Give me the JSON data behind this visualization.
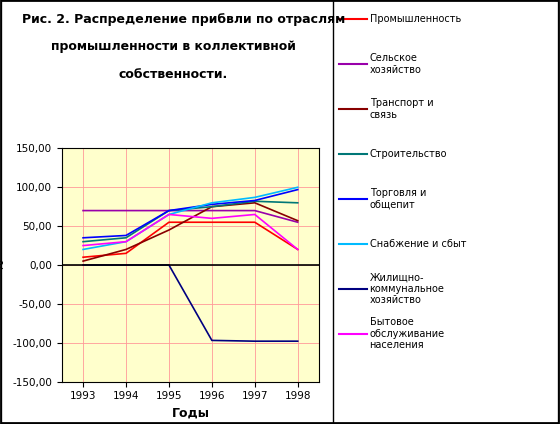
{
  "title_line1": "Рис. 2. Распределение прибвли по отраслям",
  "title_line2": "промышленности в коллективной",
  "title_line3": "собственности.",
  "xlabel": "Годы",
  "ylabel": "%",
  "years": [
    1993,
    1994,
    1995,
    1996,
    1997,
    1998
  ],
  "ylim": [
    -150,
    150
  ],
  "yticks": [
    -150,
    -100,
    -50,
    0,
    50,
    100,
    150
  ],
  "background_color": "#FFFFCC",
  "outer_background": "#FFFFFF",
  "grid_color": "#FF9999",
  "series": [
    {
      "label": "Промышленность",
      "color": "#FF0000",
      "values": [
        10,
        15,
        55,
        55,
        55,
        20
      ]
    },
    {
      "label": "Сельское\nхозяйство",
      "color": "#9900AA",
      "values": [
        70,
        70,
        70,
        70,
        70,
        55
      ]
    },
    {
      "label": "Транспорт и\nсвязь",
      "color": "#880000",
      "values": [
        5,
        20,
        45,
        75,
        80,
        57
      ]
    },
    {
      "label": "Строительство",
      "color": "#007777",
      "values": [
        30,
        35,
        70,
        75,
        82,
        80
      ]
    },
    {
      "label": "Торговля и\nобщепит",
      "color": "#0000FF",
      "values": [
        35,
        38,
        70,
        78,
        83,
        97
      ]
    },
    {
      "label": "Снабжение и сбыт",
      "color": "#00BBFF",
      "values": [
        20,
        30,
        65,
        80,
        87,
        100
      ]
    },
    {
      "label": "Жилищно-\nкоммунальное\nхозяйство",
      "color": "#000080",
      "values": [
        0,
        0,
        0,
        -97,
        -98,
        -98
      ]
    },
    {
      "label": "Бытовое\nобслуживание\nнаселения",
      "color": "#FF00FF",
      "values": [
        25,
        30,
        65,
        60,
        65,
        20
      ]
    }
  ]
}
